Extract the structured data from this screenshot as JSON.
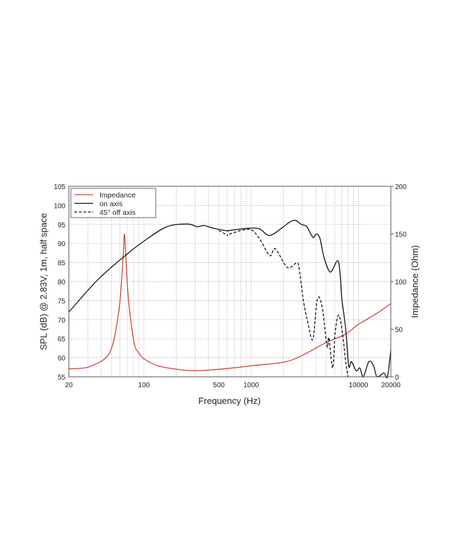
{
  "chart_data": {
    "type": "line",
    "title": "",
    "xlabel": "Frequency (Hz)",
    "ylabel": "SPL (dB) @ 2.83V, 1m, half space",
    "y2label": "Impedance (Ohm)",
    "xscale": "log",
    "xlim": [
      20,
      20000
    ],
    "ylim": [
      55,
      105
    ],
    "y2lim": [
      0,
      200
    ],
    "xticks": [
      20,
      100,
      500,
      1000,
      10000,
      20000
    ],
    "yticks": [
      55,
      60,
      65,
      70,
      75,
      80,
      85,
      90,
      95,
      100,
      105
    ],
    "y2ticks": [
      0,
      50,
      100,
      150,
      200
    ],
    "grid": true,
    "legend_position": "top-left",
    "series": [
      {
        "name": "Impedance",
        "axis": "right",
        "color": "#d0453f",
        "style": "solid",
        "points": [
          [
            20,
            8.3
          ],
          [
            30,
            10
          ],
          [
            43,
            18.8
          ],
          [
            50,
            30
          ],
          [
            55,
            50
          ],
          [
            60,
            80
          ],
          [
            64,
            125
          ],
          [
            66,
            150
          ],
          [
            68,
            125
          ],
          [
            72,
            80
          ],
          [
            81,
            36
          ],
          [
            90,
            25
          ],
          [
            100,
            19
          ],
          [
            135,
            11.6
          ],
          [
            200,
            8
          ],
          [
            270,
            6.5
          ],
          [
            400,
            7
          ],
          [
            730,
            9.7
          ],
          [
            1000,
            11.6
          ],
          [
            2000,
            15.3
          ],
          [
            3000,
            22.5
          ],
          [
            5000,
            36
          ],
          [
            7500,
            44.5
          ],
          [
            10000,
            55
          ],
          [
            15000,
            67
          ],
          [
            20000,
            77
          ]
        ]
      },
      {
        "name": "on axis",
        "axis": "left",
        "color": "#111111",
        "style": "solid",
        "points": [
          [
            20,
            72
          ],
          [
            37,
            80.4
          ],
          [
            67,
            86.8
          ],
          [
            100,
            90.6
          ],
          [
            164,
            94.4
          ],
          [
            257,
            95.1
          ],
          [
            313,
            94.4
          ],
          [
            363,
            94.7
          ],
          [
            445,
            94
          ],
          [
            600,
            93.3
          ],
          [
            617,
            93.4
          ],
          [
            960,
            94
          ],
          [
            1200,
            93.8
          ],
          [
            1490,
            92.1
          ],
          [
            2000,
            94.4
          ],
          [
            2280,
            95.6
          ],
          [
            2580,
            96.1
          ],
          [
            2930,
            95
          ],
          [
            3300,
            94.4
          ],
          [
            3760,
            91.6
          ],
          [
            4050,
            92.5
          ],
          [
            4370,
            91.3
          ],
          [
            4800,
            86.1
          ],
          [
            5470,
            82.5
          ],
          [
            6360,
            85.5
          ],
          [
            6700,
            82.8
          ],
          [
            7000,
            75.5
          ],
          [
            7600,
            67.6
          ],
          [
            8100,
            57.9
          ],
          [
            8600,
            59
          ],
          [
            9500,
            56.6
          ],
          [
            10300,
            57.3
          ],
          [
            11100,
            55
          ],
          [
            12500,
            59
          ],
          [
            13800,
            57.9
          ],
          [
            14900,
            55
          ],
          [
            17200,
            56
          ],
          [
            18600,
            55
          ],
          [
            20000,
            62
          ]
        ]
      },
      {
        "name": "45° off axis",
        "axis": "left",
        "color": "#111111",
        "style": "dashed",
        "points": [
          [
            500,
            93.4
          ],
          [
            600,
            92.2
          ],
          [
            617,
            92.4
          ],
          [
            960,
            93.7
          ],
          [
            1190,
            91.3
          ],
          [
            1490,
            86.8
          ],
          [
            1680,
            88.6
          ],
          [
            2170,
            83.7
          ],
          [
            2650,
            84.9
          ],
          [
            2800,
            83.4
          ],
          [
            3070,
            74.9
          ],
          [
            3400,
            68.8
          ],
          [
            3760,
            64.9
          ],
          [
            4150,
            75.5
          ],
          [
            4600,
            73.1
          ],
          [
            5090,
            63
          ],
          [
            5300,
            65.2
          ],
          [
            5750,
            57.3
          ],
          [
            6050,
            66.4
          ],
          [
            6500,
            71.2
          ],
          [
            7000,
            67.6
          ],
          [
            7600,
            59
          ],
          [
            8000,
            55
          ]
        ]
      }
    ]
  }
}
